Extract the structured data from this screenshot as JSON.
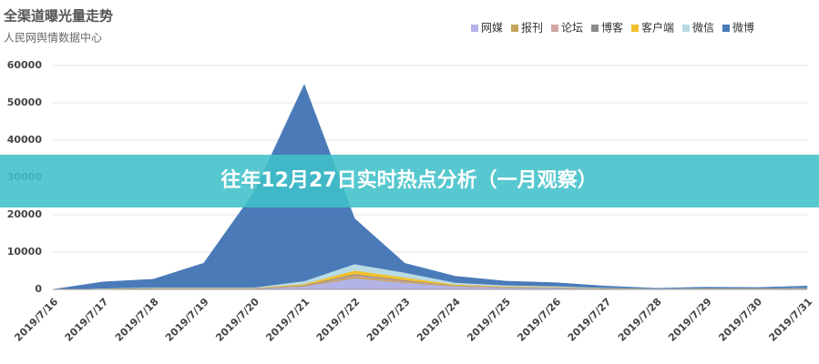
{
  "chart_data": {
    "type": "stacked_area",
    "title": "全渠道曝光量走势",
    "subtitle": "人民网舆情数据中心",
    "banner": "往年12月27日实时热点分析（一月观察）",
    "categories": [
      "2019/7/16",
      "2019/7/17",
      "2019/7/18",
      "2019/7/19",
      "2019/7/20",
      "2019/7/21",
      "2019/7/22",
      "2019/7/23",
      "2019/7/24",
      "2019/7/25",
      "2019/7/26",
      "2019/7/27",
      "2019/7/28",
      "2019/7/29",
      "2019/7/30",
      "2019/7/31"
    ],
    "series": [
      {
        "name": "网媒",
        "color": "#b3b3e6",
        "values": [
          0,
          100,
          200,
          200,
          200,
          800,
          3000,
          1800,
          800,
          500,
          400,
          200,
          100,
          150,
          150,
          200
        ]
      },
      {
        "name": "报刊",
        "color": "#c8a45a",
        "values": [
          0,
          20,
          30,
          30,
          30,
          100,
          500,
          300,
          100,
          60,
          50,
          30,
          20,
          20,
          20,
          30
        ]
      },
      {
        "name": "论坛",
        "color": "#d4a5a5",
        "values": [
          0,
          20,
          30,
          30,
          30,
          100,
          300,
          200,
          80,
          50,
          40,
          20,
          10,
          20,
          20,
          20
        ]
      },
      {
        "name": "博客",
        "color": "#8c8c8c",
        "values": [
          0,
          30,
          40,
          40,
          40,
          150,
          300,
          200,
          100,
          60,
          50,
          30,
          20,
          20,
          20,
          30
        ]
      },
      {
        "name": "客户端",
        "color": "#f2c12e",
        "values": [
          0,
          50,
          80,
          80,
          80,
          300,
          1000,
          700,
          250,
          150,
          100,
          60,
          30,
          40,
          40,
          50
        ]
      },
      {
        "name": "微信",
        "color": "#b8dbe6",
        "values": [
          0,
          100,
          150,
          150,
          150,
          800,
          1700,
          1300,
          500,
          300,
          250,
          100,
          50,
          80,
          70,
          100
        ]
      },
      {
        "name": "微博",
        "color": "#4a7ab8",
        "values": [
          0,
          1700,
          2200,
          6500,
          25500,
          52700,
          12200,
          2500,
          1700,
          1100,
          900,
          450,
          70,
          270,
          180,
          470
        ]
      }
    ],
    "ylim": [
      0,
      60000
    ],
    "yticks": [
      0,
      10000,
      20000,
      30000,
      40000,
      50000,
      60000
    ],
    "grid": true
  }
}
